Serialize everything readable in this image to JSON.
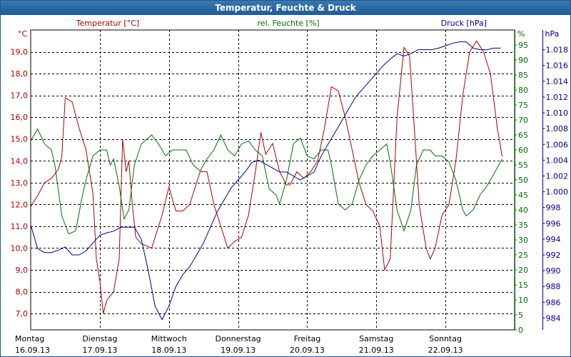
{
  "chart_data": {
    "type": "line",
    "title": "Temperatur, Feuchte & Druck",
    "x_days": [
      {
        "day": "Montag",
        "date": "16.09.13"
      },
      {
        "day": "Dienstag",
        "date": "17.09.13"
      },
      {
        "day": "Mittwoch",
        "date": "18.09.13"
      },
      {
        "day": "Donnerstag",
        "date": "19.09.13"
      },
      {
        "day": "Freitag",
        "date": "20.09.13"
      },
      {
        "day": "Samstag",
        "date": "21.09.13"
      },
      {
        "day": "Sonntag",
        "date": "22.09.13"
      }
    ],
    "xlim": [
      0,
      7
    ],
    "axes": {
      "temperature": {
        "unit": "°C",
        "label": "Temperatur [°C]",
        "color": "#b00000",
        "ylim": [
          6.25,
          20.0
        ],
        "ticks": [
          "7,0",
          "8,0",
          "9,0",
          "10,0",
          "11,0",
          "12,0",
          "13,0",
          "14,0",
          "15,0",
          "16,0",
          "17,0",
          "18,0",
          "19,0"
        ]
      },
      "humidity": {
        "unit": "%",
        "label": "rel. Feuchte [%]",
        "color": "#007000",
        "ylim": [
          0,
          100
        ],
        "ticks": [
          "0",
          "5",
          "10",
          "15",
          "20",
          "25",
          "30",
          "35",
          "40",
          "45",
          "50",
          "55",
          "60",
          "65",
          "70",
          "75",
          "80",
          "85",
          "90",
          "95"
        ]
      },
      "pressure": {
        "unit": "hPa",
        "label": "Druck [hPa]",
        "color": "#00008b",
        "ylim": [
          982.5,
          1020.5
        ],
        "ticks": [
          "984",
          "986",
          "988",
          "990",
          "992",
          "994",
          "996",
          "998",
          "1.000",
          "1.002",
          "1.004",
          "1.006",
          "1.008",
          "1.010",
          "1.012",
          "1.014",
          "1.016",
          "1.018"
        ]
      }
    },
    "series": [
      {
        "name": "Temperatur",
        "axis": "temperature",
        "points": [
          [
            0,
            11.9
          ],
          [
            0.1,
            12.4
          ],
          [
            0.2,
            13.0
          ],
          [
            0.3,
            13.2
          ],
          [
            0.4,
            13.6
          ],
          [
            0.45,
            14.2
          ],
          [
            0.5,
            16.9
          ],
          [
            0.6,
            16.7
          ],
          [
            0.7,
            15.5
          ],
          [
            0.8,
            14.5
          ],
          [
            0.9,
            12.5
          ],
          [
            0.95,
            9.5
          ],
          [
            1.0,
            8.5
          ],
          [
            1.05,
            7.0
          ],
          [
            1.1,
            7.6
          ],
          [
            1.2,
            8.0
          ],
          [
            1.28,
            9.5
          ],
          [
            1.33,
            15.0
          ],
          [
            1.38,
            13.5
          ],
          [
            1.42,
            14.0
          ],
          [
            1.47,
            12.0
          ],
          [
            1.52,
            10.5
          ],
          [
            1.6,
            10.2
          ],
          [
            1.75,
            10.0
          ],
          [
            1.9,
            11.5
          ],
          [
            2.0,
            12.8
          ],
          [
            2.1,
            11.7
          ],
          [
            2.2,
            11.7
          ],
          [
            2.3,
            12.0
          ],
          [
            2.45,
            13.5
          ],
          [
            2.55,
            13.5
          ],
          [
            2.65,
            12.0
          ],
          [
            2.75,
            11.0
          ],
          [
            2.85,
            10.0
          ],
          [
            2.95,
            10.3
          ],
          [
            3.05,
            10.5
          ],
          [
            3.15,
            11.5
          ],
          [
            3.25,
            13.5
          ],
          [
            3.33,
            15.3
          ],
          [
            3.4,
            14.3
          ],
          [
            3.5,
            14.8
          ],
          [
            3.6,
            13.5
          ],
          [
            3.7,
            12.9
          ],
          [
            3.75,
            12.9
          ],
          [
            3.85,
            13.5
          ],
          [
            3.95,
            13.2
          ],
          [
            4.05,
            13.5
          ],
          [
            4.15,
            14.0
          ],
          [
            4.25,
            15.5
          ],
          [
            4.35,
            17.4
          ],
          [
            4.45,
            17.2
          ],
          [
            4.55,
            16.0
          ],
          [
            4.65,
            14.5
          ],
          [
            4.75,
            13.0
          ],
          [
            4.85,
            12.0
          ],
          [
            4.95,
            11.7
          ],
          [
            5.05,
            11.0
          ],
          [
            5.12,
            9.0
          ],
          [
            5.2,
            9.5
          ],
          [
            5.3,
            16.0
          ],
          [
            5.4,
            19.2
          ],
          [
            5.48,
            18.8
          ],
          [
            5.56,
            15.0
          ],
          [
            5.62,
            12.0
          ],
          [
            5.72,
            10.0
          ],
          [
            5.78,
            9.5
          ],
          [
            5.85,
            10.0
          ],
          [
            5.95,
            11.5
          ],
          [
            6.05,
            12.0
          ],
          [
            6.15,
            14.0
          ],
          [
            6.25,
            17.0
          ],
          [
            6.35,
            19.0
          ],
          [
            6.45,
            19.5
          ],
          [
            6.55,
            19.0
          ],
          [
            6.65,
            18.0
          ],
          [
            6.75,
            15.5
          ],
          [
            6.82,
            14.2
          ]
        ]
      },
      {
        "name": "rel. Feuchte",
        "axis": "humidity",
        "points": [
          [
            0,
            63
          ],
          [
            0.1,
            67
          ],
          [
            0.2,
            62
          ],
          [
            0.3,
            60
          ],
          [
            0.35,
            55
          ],
          [
            0.45,
            38
          ],
          [
            0.55,
            32
          ],
          [
            0.65,
            33
          ],
          [
            0.75,
            45
          ],
          [
            0.8,
            50
          ],
          [
            0.9,
            58
          ],
          [
            1.0,
            60
          ],
          [
            1.1,
            60
          ],
          [
            1.15,
            55
          ],
          [
            1.2,
            57
          ],
          [
            1.28,
            48
          ],
          [
            1.35,
            37
          ],
          [
            1.42,
            40
          ],
          [
            1.5,
            55
          ],
          [
            1.6,
            62
          ],
          [
            1.75,
            65
          ],
          [
            1.85,
            62
          ],
          [
            1.95,
            58
          ],
          [
            2.05,
            60
          ],
          [
            2.15,
            60
          ],
          [
            2.25,
            60
          ],
          [
            2.35,
            55
          ],
          [
            2.45,
            53
          ],
          [
            2.55,
            57
          ],
          [
            2.65,
            60
          ],
          [
            2.75,
            65
          ],
          [
            2.85,
            60
          ],
          [
            2.95,
            58
          ],
          [
            3.05,
            62
          ],
          [
            3.15,
            63
          ],
          [
            3.25,
            60
          ],
          [
            3.35,
            58
          ],
          [
            3.45,
            47
          ],
          [
            3.55,
            45
          ],
          [
            3.6,
            42
          ],
          [
            3.7,
            50
          ],
          [
            3.8,
            62
          ],
          [
            3.9,
            64
          ],
          [
            4.0,
            58
          ],
          [
            4.1,
            57
          ],
          [
            4.2,
            60
          ],
          [
            4.3,
            60
          ],
          [
            4.35,
            55
          ],
          [
            4.45,
            42
          ],
          [
            4.55,
            40
          ],
          [
            4.65,
            42
          ],
          [
            4.75,
            50
          ],
          [
            4.85,
            55
          ],
          [
            4.95,
            58
          ],
          [
            5.05,
            60
          ],
          [
            5.15,
            62
          ],
          [
            5.2,
            56
          ],
          [
            5.3,
            40
          ],
          [
            5.4,
            33
          ],
          [
            5.5,
            40
          ],
          [
            5.58,
            55
          ],
          [
            5.68,
            60
          ],
          [
            5.78,
            60
          ],
          [
            5.85,
            58
          ],
          [
            5.95,
            58
          ],
          [
            6.05,
            56
          ],
          [
            6.15,
            50
          ],
          [
            6.25,
            40
          ],
          [
            6.3,
            38
          ],
          [
            6.4,
            40
          ],
          [
            6.5,
            45
          ],
          [
            6.6,
            48
          ],
          [
            6.7,
            52
          ],
          [
            6.82,
            57
          ]
        ]
      },
      {
        "name": "Druck",
        "axis": "pressure",
        "points": [
          [
            0,
            995.8
          ],
          [
            0.1,
            992.8
          ],
          [
            0.2,
            992.3
          ],
          [
            0.3,
            992.3
          ],
          [
            0.4,
            992.6
          ],
          [
            0.5,
            993.0
          ],
          [
            0.6,
            992.0
          ],
          [
            0.7,
            992.0
          ],
          [
            0.8,
            992.5
          ],
          [
            0.9,
            993.5
          ],
          [
            1.0,
            994.5
          ],
          [
            1.1,
            994.8
          ],
          [
            1.2,
            995.0
          ],
          [
            1.3,
            995.5
          ],
          [
            1.4,
            995.5
          ],
          [
            1.5,
            995.5
          ],
          [
            1.6,
            994.0
          ],
          [
            1.7,
            990.0
          ],
          [
            1.8,
            985.5
          ],
          [
            1.9,
            983.8
          ],
          [
            2.0,
            985.5
          ],
          [
            2.1,
            988.0
          ],
          [
            2.2,
            989.5
          ],
          [
            2.3,
            990.5
          ],
          [
            2.4,
            992.0
          ],
          [
            2.5,
            993.5
          ],
          [
            2.6,
            995.5
          ],
          [
            2.7,
            997.5
          ],
          [
            2.8,
            999.0
          ],
          [
            2.9,
            1000.5
          ],
          [
            3.0,
            1001.5
          ],
          [
            3.1,
            1002.5
          ],
          [
            3.2,
            1003.7
          ],
          [
            3.3,
            1004.0
          ],
          [
            3.4,
            1003.5
          ],
          [
            3.5,
            1003.0
          ],
          [
            3.6,
            1002.5
          ],
          [
            3.7,
            1002.5
          ],
          [
            3.8,
            1002.0
          ],
          [
            3.9,
            1001.5
          ],
          [
            4.0,
            1002.0
          ],
          [
            4.1,
            1002.5
          ],
          [
            4.2,
            1004.5
          ],
          [
            4.3,
            1006.0
          ],
          [
            4.4,
            1007.5
          ],
          [
            4.5,
            1009.0
          ],
          [
            4.6,
            1010.5
          ],
          [
            4.7,
            1012.0
          ],
          [
            4.8,
            1013.0
          ],
          [
            4.9,
            1014.0
          ],
          [
            5.0,
            1015.0
          ],
          [
            5.1,
            1016.0
          ],
          [
            5.2,
            1016.8
          ],
          [
            5.3,
            1017.5
          ],
          [
            5.4,
            1017.2
          ],
          [
            5.5,
            1017.5
          ],
          [
            5.6,
            1018.0
          ],
          [
            5.7,
            1018.0
          ],
          [
            5.8,
            1018.0
          ],
          [
            5.9,
            1018.2
          ],
          [
            6.0,
            1018.5
          ],
          [
            6.1,
            1018.8
          ],
          [
            6.2,
            1019.0
          ],
          [
            6.3,
            1019.0
          ],
          [
            6.4,
            1018.2
          ],
          [
            6.5,
            1018.0
          ],
          [
            6.6,
            1018.0
          ],
          [
            6.7,
            1018.2
          ],
          [
            6.8,
            1018.2
          ]
        ]
      }
    ]
  }
}
